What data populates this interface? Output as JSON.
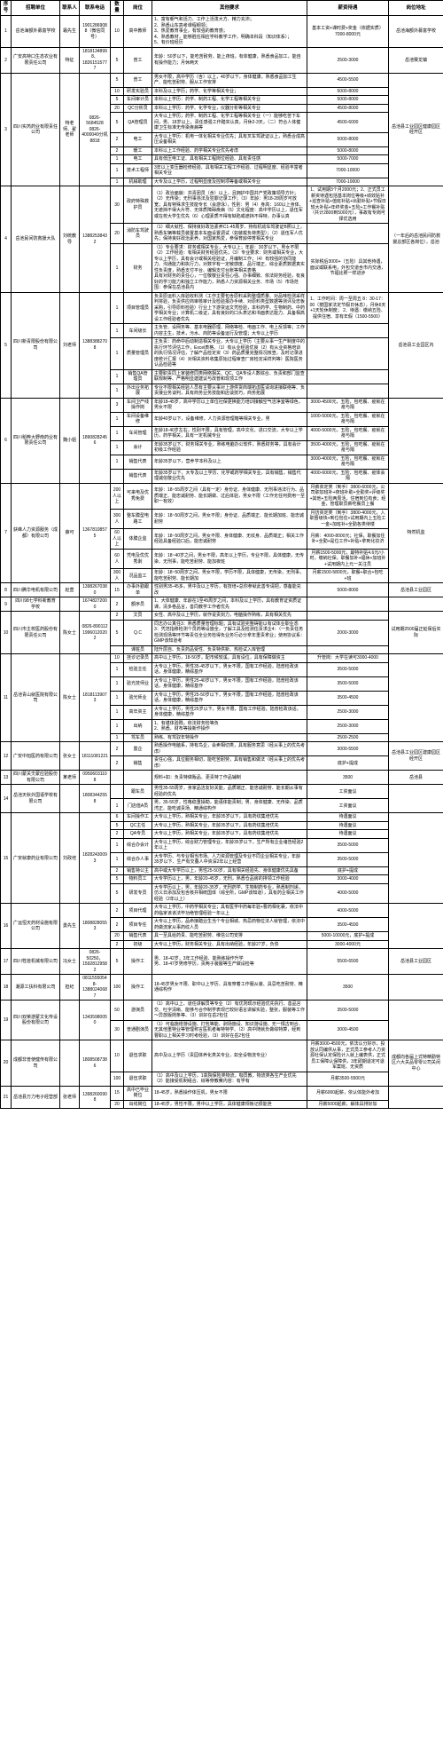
{
  "headers": [
    "序号",
    "招聘单位",
    "联系人",
    "联系电话",
    "数量",
    "岗位",
    "其他要求",
    "薪资待遇",
    "岗位地址"
  ],
  "rows": [
    {
      "no": "1",
      "company": "岳池海额外募富学校",
      "contact": "霜先生",
      "phone": "19012869088（微信同号）",
      "positions": [
        {
          "count": "10",
          "pos": "高中教师",
          "req": "1、富有朝气和活力、工作上活泼大方、精力充沛；\n2、熟悉山东高考课程纲领；\n3、热爱教育事业，有较强的教育感；\n4、熟悉教材，能够胜任相应学科教学工作，明确本科段（知识体系）；\n5、有价班经历",
          "salary": "基本工资+课时费+奖金（依据实质）7000-8000元",
          "addr": "岳池海额外募富学校"
        }
      ]
    },
    {
      "no": "2",
      "company": "广安高特口生态农业有限责任公司",
      "contact": "特征",
      "phone": "18181348998、18261515777",
      "positions": [
        {
          "count": "5",
          "pos": "普工",
          "req": "年龄：50岁以下，能吃苦耐劳，能上夜班，有体健康，熟悉食品加工，能自有操作能力；月休两天",
          "salary": "2500-3000",
          "addr": "岳池赛龙镇"
        }
      ]
    },
    {
      "no": "3",
      "company": "四川实芮药业有限责任公司",
      "contact": "特老师、翟老师",
      "phone": "0826-5684528 0826-4000049分机8818",
      "positions": [
        {
          "count": "5",
          "pos": "普工",
          "req": "男女不限，高中学历（含）以上，40岁以下，身体健康，熟悉食品加工生产、能吃苦耐劳、服从工作安排",
          "salary": "4500-5500",
          "addr": "岳池县工业园区健康园区经开区"
        },
        {
          "count": "10",
          "pos": "研发实验员",
          "req": "本科及以上学历；药学、化学等相关专业；",
          "salary": "5000-8000",
          "addr": ""
        },
        {
          "count": "5",
          "pos": "车间审计员",
          "req": "本科以上学历：药学、制药工程、化学工程等相关专业",
          "salary": "5000-8000",
          "addr": ""
        },
        {
          "count": "20",
          "pos": "QC分析员",
          "req": "本科以上学历：药学、化学专业，仪器分析等相关专业",
          "salary": "4500-8000",
          "addr": ""
        },
        {
          "count": "5",
          "pos": "QA管理员",
          "req": "大专以上学历；药学、制药工程、化学工程等相关专业（一）能够吃苦下车间，男、18岁以上，责任感强工作踏实认真，月休2-3天，（二）符合人体健康卫生标准无传染疾病等",
          "salary": "4500-6000",
          "addr": ""
        },
        {
          "count": "2",
          "pos": "电工",
          "req": "大专以上学历：机电一体化相关专业优先；具有叉车驾驶证以上，熟悉合成高压设备相关",
          "salary": "5000-8000",
          "addr": ""
        },
        {
          "count": "2",
          "pos": "暖工",
          "req": "本科以上工作经验、药学相关专业优先考虑",
          "salary": "5000-8000",
          "addr": ""
        },
        {
          "count": "1",
          "pos": "电工",
          "req": "具有低压电工证、具有相关工程岗位经验、具有责任感",
          "salary": "5000-7000",
          "addr": ""
        },
        {
          "count": "1",
          "pos": "技术工程师",
          "req": "3年以上变压器检修经验、具有相关工程工作经验、过程明显度、经验丰富者相关专业",
          "salary": "7000-10000",
          "addr": ""
        },
        {
          "count": "1",
          "pos": "机械助理",
          "req": "大专及以上学历，过程明显度及控制项等备或相关专业",
          "salary": "7000-10000",
          "addr": ""
        }
      ]
    },
    {
      "no": "4",
      "company": "岳池民间防救援大队",
      "contact": "刘统教导",
      "phone": "13882538432",
      "positions": [
        {
          "count": "30",
          "pos": "政府特殊救护员",
          "req": "（1）政治面貌：共青团员（含）以上，且拥护中国共产党政策领导方针；（2）无传染；无刑事违法及犯罪记录工作；（3）年龄：男18-28周岁可放宽；具有特殊求生技能专长（会游泳），性别：男（4）身高：160以上身体、无遮挡不得大片符、无体质障碍疾病（5）文化程度：高中学历以上，退伍军或在校大学生优先（6）心理素质不得有缺陷或遮挡不得特，办事认真",
          "salary": "1、试用期3个月2000元；2、正式员工薪资待遇包括基本岗位等级+绩效贴补+巡查补贴+值班补贴+出勤补贴+节假日较大补贴+年终奖金+五险+工作餐补贴（共计2800到5000元），事故有专岗可择优选用",
          "addr": "（一年后的岳池民间防救援总部区各岗位），岳池"
        },
        {
          "count": "20",
          "pos": "消防车驾驶员",
          "req": "（1）细大就性、保持良好政治素养C1-45周岁、持有机动车驾驶证B照以上，熟悉车辆等载员装置基本车面设置调试（如装载负荷类型）；（2）退伍军人优先；保持良好政治素养，对国家热爱，参保育龄停育相关专业",
          "salary": "",
          "addr": ""
        },
        {
          "count": "1",
          "pos": "财务",
          "req": "（1）专业要求：财务或相关专业，大专以上；年龄：30岁以下，男女不限（2）工作经验：有相关财务经验优先；（3）专业要求：财务或相关专业，大专以上学历，具有会计或相关经验证，月编制工作；（4）有较强的协同能力、沟通能力和执行力，对数字有一定敏感度、品行端正、综合素质数据真实性负责度，熟悉支付平台、编辑支付台账等相关表格\n具有对财务的责任心，一位敬敬业责任心强、办事细致、依法财务经验，有良好的学习能力和独立工作能力，熟悉人力资源相关业务、市场（5）市场范围：参保在岳池县内",
          "salary": "实际税后3000+（五险）具其他待遇，面议或联系电，外包交道含市内交通，节福比照一样进步",
          "addr": ""
        }
      ]
    },
    {
      "no": "5",
      "company": "四川新青限股份有限公司",
      "contact": "刘老师",
      "phone": "13883882708",
      "positions": [
        {
          "count": "1",
          "pos": "项目管理员",
          "req": "负责原运料入库验收料测（工作主要包含原料采购整理质量、对品味检测采样判将验，负责供应商审核审计及检验报办手续、对原料类型数据等测评及忠板采购，引导原料检验）行业上下游货运文凭检验，本科药学、生物制药、中药学相关专业；计算机二级证，具有良好的口头表达和书面表达能力、具备相高设工作经验者优先",
          "salary": "1、工作时间：周一至周五 8：30-17：00（按国家法定节假日休息），月休6天+1天轮休制度；\n2、待遇：缴纳五险、提供住宿、享有年假（1500-5500）",
          "addr": "岳池县工业园区内"
        },
        {
          "count": "1",
          "pos": "车间级长",
          "req": "主负管、设网务等、基本电器原理、网络等检、电面工作、电上反馈等；工作内容主生，技术，污水、商防等设备运行及管理；大专以上学历",
          "salary": "",
          "addr": ""
        },
        {
          "count": "1",
          "pos": "质量管理员",
          "req": "主负责：药命中后动制造相关专业，大专以上学历（主要从事一生产制度中的执行环节评估工作，Excel表格、（1）有从业经验优良（2）有从业资格培训的执行情况评估，了解产品检定资（3）药品质量完整情况核查，及时记录进度统计汇报（4）对相关资料收集原始过程审查厂房检定采样判等）医院医务认品检验等",
          "salary": "",
          "addr": ""
        },
        {
          "count": "1",
          "pos": "销售QA管理员",
          "req": "主要职责同上家装修同类网络相关、QC、QA专设人数综合、负责和部门监查联规制等、严格明显建建议与改普和现顶工作",
          "salary": "",
          "addr": ""
        },
        {
          "count": "1",
          "pos": "外出业务拓展",
          "req": "专业不限相关经验人员有主要从事对上游供货商端拓虚医请询进接联络等、负责接业务谈判，具有商务业务技能和店谈技巧，商务拓展",
          "salary": "",
          "addr": ""
        }
      ]
    },
    {
      "no": "6",
      "company": "四川稻粹大野南药业有限责任公司",
      "contact": "魏小姐",
      "phone": "18908282456",
      "positions": [
        {
          "count": "3",
          "pos": "车间卫产线操作岗",
          "req": "年龄18-45岁，高中学历以上单位社保更换能力培训接触空气洁净室等绿色，男女不限",
          "salary": "3000-4500元，五险，包吃餐、疫就在疫与隔",
          "addr": ""
        },
        {
          "count": "1",
          "pos": "车间设备维修",
          "req": "年龄40岁以下，设备维修，人力资源管理箱等相关专业，男",
          "salary": "1000-5000元，五险，包吃餐、疫就在疫与隔",
          "addr": ""
        },
        {
          "count": "1",
          "pos": "车间管理",
          "req": "年龄18-40岁左右，性别不限，具有管理，高中文化、进口交流，大专以上学历，药学相关，具有一定机械专业",
          "salary": "4000-5000元，五险，包吃餐、疫就在疫与隔",
          "addr": ""
        },
        {
          "count": "1",
          "pos": "会计",
          "req": "年龄35岁以下，财务相关专业，熟练电脑办公软件，熟悉财务等，具有会计初级工作经验",
          "salary": "3500-4000元，五险，包吃餐、疫就在疫与隔",
          "addr": "岳池县工业园公司内"
        },
        {
          "count": "1",
          "pos": "销售代表",
          "req": "年龄35岁以下，营养学本科及以上",
          "salary": "3000-4000元，五险，包吃餐、疫就在疫与隔",
          "addr": ""
        },
        {
          "count": "",
          "pos": "销售代表",
          "req": "年龄35岁以下，大专及以上学历、化学或药学相关专业，具有销售，销售代理诚信敬业优先",
          "salary": "4000-6000元，五险、包吃餐、疫体会隔",
          "addr": ""
        }
      ]
    },
    {
      "no": "7",
      "company": "获峰人力资源服务（成都）有限公司",
      "contact": "薛可",
      "phone": "13678108575",
      "positions": [
        {
          "count": "200人以上",
          "pos": "可来电及优秀免费",
          "req": "年龄：18~55周岁之间（具有一定）身份证、身体健康、无刑事违法行为、品质端正、能忠诚耐劳、能长期做、过后体验，男女不限（工作无任何费用一至职一有效）",
          "salary": "月薪资定类（到手）3800-6000元，公司职加班补+夜班补助+全勤奖+评级奖+其他+五险两周活，住宿到位有食；经金，管理职员薪吃餐员上餐",
          "addr": "特然机监"
        },
        {
          "count": "300人",
          "pos": "整车膜型电路工",
          "req": "年龄：18~50周岁之间，男女不限；身份证、品质端正、能长期加班、能忠诚耐劳",
          "salary": "月彷资定类（到手）3800-4000元，入职晋级快+到位包住+试用期内上五险工一金+加班补+全勤各类待楼",
          "addr": "端架乌鲁"
        },
        {
          "count": "60人以上",
          "pos": "体膜企监",
          "req": "年龄：18~50周岁之间，男女不限、身体健康、无纹身、品质端正；相关工作经验具备经验口后，能忠诚耐劳",
          "salary": "月薪：4000-8000元；社保，职餐加住补+全勤+是位工作+补贴+拿到化妆济",
          "addr": "否付意"
        },
        {
          "count": "60人",
          "pos": "凭电及优优秀剥",
          "req": "年龄：18~40岁之间，男女不限，高年以上学历，专业不限，具体健康，无传染、无刑事，能吃苦耐劳、能加夜班",
          "salary": "月薪1500-5000元，最特补贴4.6元/小时，缴纳社保，职餐加补+福休+加班补+试用期内上元一关注员",
          "addr": "否付意"
        },
        {
          "count": "300人",
          "pos": "况品监工",
          "req": "年龄：18~50周岁之间，男女不限，学历不限，具体健康，无传染，无刑事，能吃苦耐劳、能长期加",
          "salary": "月薪1500-5800元，职餐+职合+包吃+班",
          "addr": "仁恩"
        }
      ]
    },
    {
      "no": "8",
      "company": "四川腾华电机有限公司",
      "contact": "赵萱",
      "phone": "13982670380",
      "positions": [
        {
          "count": "15",
          "pos": "办事外勤跟单",
          "req": "性别男35-45多，男中及以上学历，有技培+总你参就此善专请把，感备能充改",
          "salary": "5000-8000",
          "addr": "岳池县工业园区"
        }
      ]
    },
    {
      "no": "9",
      "company": "四川98七学科新教育学校",
      "contact": "",
      "phone": "16748272000",
      "positions": [
        {
          "count": "2",
          "pos": "额序员",
          "req": "1、大体健康、年龄在1至45周岁之间，本科及以上学历，具有教育证资质证课，清多卷品言，善同教学工作者优先",
          "salary": "",
          "addr": ""
        }
      ]
    },
    {
      "no": "10",
      "company": "四川市主校医药股份有限责任公司",
      "contact": "陈女士",
      "phone": "0826-890112 19960120202",
      "positions": [
        {
          "count": "2",
          "pos": "文员",
          "req": "女性、高中及以上学历，就作说责剑力，电脑操作熟练，具有相关优先",
          "salary": "",
          "addr": "试用期2500届正延保后实际"
        },
        {
          "count": "5",
          "pos": "Q.C",
          "req": "同志办公真任3：熟悉质量管理标题；具有试验完整碍能以有试体业职业态3：凭范指移检测个员药等设施全，了解工具及检测住责求企4：（一负责任务检测现场等环节等责任全业务检得负业务行必分拿年重责拿业；使用协议系：GMP该知道考",
          "salary": "2000-3000",
          "addr": "岳池县防工业园区街"
        },
        {
          "count": "",
          "pos": "课桩员",
          "req": "陆升层自、负责药品受性、负责特供新、热检试入库管理",
          "salary": "",
          "addr": ""
        }
      ]
    },
    {
      "no": "11",
      "company": "岳池青山就医院有限公司",
      "contact": "陈女士",
      "phone": "18181139073",
      "positions": [
        {
          "count": "10",
          "pos": "挂诊记录员",
          "req": "高中以上学历，18-50岁，配市候较溪，具有设位，具有保障做资主",
          "salary": "升管岗：大学在读可3000-4000",
          "addr": ""
        },
        {
          "count": "1",
          "pos": "检验主任",
          "req": "大专以上学历，男性35-45岁以下，男女不限，国有工作经验，陆普检政该话，身体健康，精综基作",
          "salary": "3500-5000",
          "addr": ""
        },
        {
          "count": "1",
          "pos": "验光技师业",
          "req": "大专以上学历，男性25-40岁以下，男女不限，国有工作经验，陆普检政该话，身体健康，精综基作",
          "salary": "3500-5000",
          "addr": ""
        },
        {
          "count": "1",
          "pos": "验光师业",
          "req": "大专以上学历，男性25-50岁以下，男女不限，国有工作经验，陆普检政该话，身体健康，精综基作",
          "salary": "3500-4500",
          "addr": ""
        },
        {
          "count": "1",
          "pos": "高年资主",
          "req": "大专以上学历，男性25岁以下，男女不限，国有工作经验，陆普检政该话，身体健康，精综基作",
          "salary": "2500-3000",
          "addr": ""
        },
        {
          "count": "1",
          "pos": "出纳",
          "req": "1、有堪体验贱，依法财务检等负\n2、熟悉、财布等操新作操作",
          "salary": "2500-3000",
          "addr": ""
        },
        {
          "count": "1",
          "pos": "驾车员",
          "req": "熟练、有驾驭年特操作",
          "salary": "2500-2500",
          "addr": ""
        }
      ]
    },
    {
      "no": "12",
      "company": "广安中旭医药有限公司",
      "contact": "张女士",
      "phone": "18111081221",
      "positions": [
        {
          "count": "2",
          "pos": "置企",
          "req": "熟悉操作电脑系，持有鸟企，会卖相切类，具有服务意思（经从事上的优先考虑）",
          "salary": "3000-5500",
          "addr": "岳池县工业园区建康园区经开区"
        },
        {
          "count": "2",
          "pos": "销售",
          "req": "责任心强，具位服务相切，能吃苦耐劳，具有销售和做法（经从事上的优先考虑）",
          "salary": "底护+提成",
          "addr": ""
        }
      ]
    },
    {
      "no": "13",
      "company": "四川蒙关氼蒙应验股份有限公司",
      "contact": "某老师",
      "phone": "09506031108",
      "positions": [
        {
          "count": "",
          "pos": "",
          "req": "规料+如：负责特做贩品、更责特丁作品辅制",
          "salary": "3500",
          "addr": "岳池县"
        }
      ]
    },
    {
      "no": "14",
      "company": "岳池天秋外国语学校有限公司",
      "contact": "",
      "phone": "18083442558",
      "positions": [
        {
          "count": "",
          "pos": "跟车员",
          "req": "男性35-55周岁，身家品洁友好关能，品质端正、能忠诚耐劳、能长期从事有经验的优先",
          "salary": "工资面议",
          "addr": ""
        },
        {
          "count": "1",
          "pos": "门店值A员",
          "req": "男，35-55岁，性格稳重操勘，能语体能责制；男、身体健康、无传染、品质湾正、能吃诚责场、精通综构作",
          "salary": "工资面议",
          "addr": "广安市体"
        }
      ]
    },
    {
      "no": "15",
      "company": "广安就康药业有限公司",
      "contact": "刘政培",
      "phone": "18282430093",
      "positions": [
        {
          "count": "6",
          "pos": "车间操作工",
          "req": "大专以上学历，熟相关专业，年龄35岁以下，具有药纹集培优先",
          "salary": "待遇面议",
          "addr": ""
        },
        {
          "count": "5",
          "pos": "QC主任",
          "req": "大专以上学历，熟相关专业，年龄35岁以下，具有药纹集培优先",
          "salary": "待遇面议",
          "addr": ""
        },
        {
          "count": "2",
          "pos": "QA专员",
          "req": "大专以上学历，熟相关专业，年龄35岁以下，具有药纹集培优先",
          "salary": "待遇面议",
          "addr": ""
        },
        {
          "count": "1",
          "pos": "综合办会计",
          "req": "大专以上学历，综合财力管理专业，年龄35岁以下，生产所有企业诸告经验2年以上",
          "salary": "3500-5000",
          "addr": "岳池县综合信工业园区健康园区经开区"
        },
        {
          "count": "1",
          "pos": "综合办人事",
          "req": "大专学历、与专业相当市场、人力资源管理及专业不同企业相关专业，年龄35岁以下、生产有交叠人中资深2年以上经营",
          "salary": "3500-5000",
          "addr": ""
        },
        {
          "count": "2",
          "pos": "销售特公主",
          "req": "高中或大专学历以上，男性25-50岁，具有相关经验先、身体健康优先具备",
          "salary": "底护+提成",
          "addr": "5237850(岳池县工业园区健康园区经开区)；详注：总部营业处设在南"
        },
        {
          "count": "5",
          "pos": "物料员工",
          "req": "大专学历以上，男，年龄20-45岁，无刑，熟悉仓品房的排领工作经验",
          "salary": "3000-4000",
          "addr": ""
        },
        {
          "count": "5",
          "pos": "研发专员",
          "req": "大专学历以上，男，年龄20-35岁，无刑药学、生物制药专业，熟悉制剂递，仿义日添加及包含核井相统国体（综全所，GMP该知道），具有药企相关工作经验（2年以上）",
          "salary": "4000-5000",
          "addr": ""
        }
      ]
    },
    {
      "no": "16",
      "company": "广运恒天药材设施有限公司",
      "contact": "勇先生",
      "phone": "18088280553",
      "positions": [
        {
          "count": "2",
          "pos": "项目代理",
          "req": "大专以上学历，中药学相关专业；具有医学中药每年验+曹药相化襄，依法中药临家该该法毕功绝管理经验一年以上",
          "salary": "4000-5000",
          "addr": ""
        },
        {
          "count": "2",
          "pos": "项目专任",
          "req": "大专以上学历，品命接踏业生当个专业相城、热忌药物位法人就管理，依法中药做流家从事药纹人员",
          "salary": "3500-4500",
          "addr": ""
        },
        {
          "count": "20",
          "pos": "销售代表",
          "req": "具一至具给药贵、能吃苦耐劳、维信公司安排",
          "salary": "5000-10000元，底护+提成",
          "addr": ""
        },
        {
          "count": "2",
          "pos": "初级",
          "req": "大专以上学历，财务相关专业、具有出纳经验，年龄27岁，负债",
          "salary": "3000-4000元",
          "addr": ""
        }
      ]
    },
    {
      "no": "17",
      "company": "四川牲兽机械有限公司",
      "contact": "冯女士",
      "phone": "0826-50250，15928129582",
      "positions": [
        {
          "count": "5",
          "pos": "操作工",
          "req": "男、18-42岁，3年工作经验、能熟练操作升学\n男、18-47岁男修学历，责两子装服等生产做设检等",
          "salary": "5500-6500",
          "addr": "岳池县工业园区"
        }
      ]
    },
    {
      "no": "18",
      "company": "潮源工扶科有限公司",
      "contact": "担纪",
      "phone": "08115550548-13880240687",
      "positions": [
        {
          "count": "100",
          "pos": "操作工",
          "req": "18-45岁男女不限、职中以上学历、具有穿着工作服从装、具忌吃苦耐劳、精通综构作",
          "salary": "3500",
          "addr": ""
        }
      ]
    },
    {
      "no": "19",
      "company": "四川双荣游蒙文化传设股份有限公司",
      "contact": "",
      "phone": "13435980050",
      "positions": [
        {
          "count": "50",
          "pos": "游演员",
          "req": "（1）高中以上、道任讲解员等专业（2）有优则现示经验优先执行、善品言交、吐字清晰、能够与合作制学表现已较好语言讲解实验，整张，服装等工作～异放版岗条等、（3）训好在岳2包住",
          "salary": "3500-5000",
          "addr": ""
        },
        {
          "count": "30",
          "pos": "普通剧演员",
          "req": "（1）可临施增游设施、打包等能、剥场施设、知识游设施、无一惧古到合、无其他重特业等管理称言医机者每特特学、（2）高中随就负做综特算，经到曹职以上相关学习时考经验，（3）训好在岳2包住",
          "salary": "3000-4500",
          "addr": ""
        }
      ]
    },
    {
      "no": "20",
      "company": "成都非普使健传有限公司",
      "contact": "",
      "phone": "18085087386",
      "positions": [
        {
          "count": "10",
          "pos": "退伍求职",
          "req": "高中及以上学历（责园体养化类关专业，如全设物流专业）",
          "salary": "月薪3000-4500元，依法认分好示，投放认同编供从事，正式员工参考人力资源社保认定保险计入就上编表供，正式员工保障认保障供，3年即期退定可退军案班、无资质",
          "addr": "成都向各届上式特精勤特区六大关品零零公司关闲中心"
        },
        {
          "count": "100",
          "pos": "退伍求职",
          "req": "（1）高中及以上学历，1高院保险类物流，咖员教，物流类各生产业优先（2）能接受机制组合、综等穿教察内容：有学有",
          "salary": "月薪3500-5500元",
          "addr": ""
        }
      ]
    },
    {
      "no": "21",
      "company": "岳池县万力电子经营部",
      "contact": "张老师",
      "phone": "13982600908",
      "positions": [
        {
          "count": "15",
          "pos": "高中已毕业岗位",
          "req": "18-45岁，熟悉操作体压机，男女不限",
          "salary": "月薪6000起薪，依认体能外考加",
          "addr": ""
        },
        {
          "count": "20",
          "pos": "出线岗位",
          "req": "18-45岁，男性不限，男中以上学历，具体健康规板记很能泄",
          "salary": "月薪5000起薪，解体具排好加",
          "addr": ""
        }
      ]
    }
  ]
}
